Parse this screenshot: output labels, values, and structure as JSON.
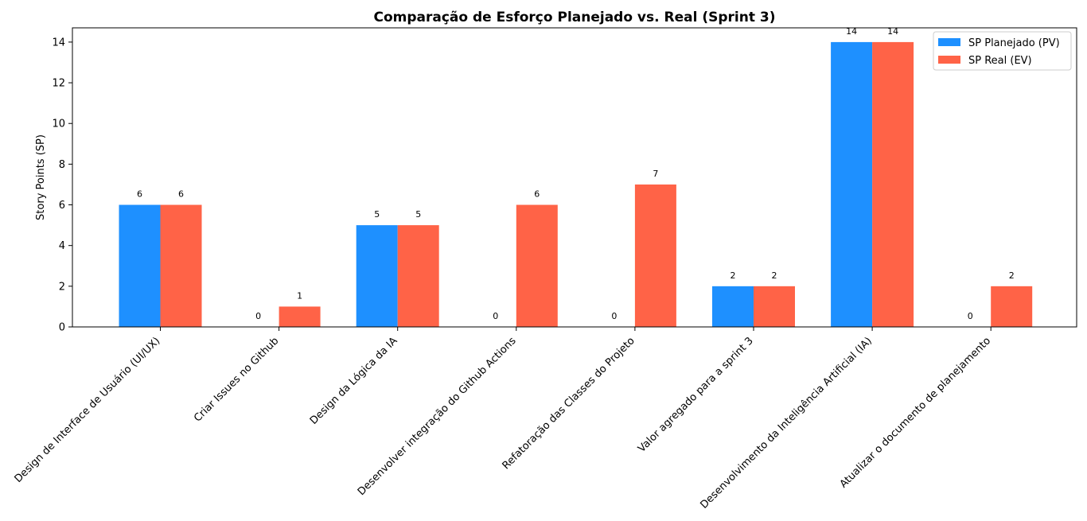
{
  "chart_data": {
    "type": "bar",
    "title": "Comparação de Esforço Planejado vs. Real (Sprint 3)",
    "xlabel": "",
    "ylabel": "Story Points (SP)",
    "ylim": [
      0,
      14.7
    ],
    "yticks": [
      0,
      2,
      4,
      6,
      8,
      10,
      12,
      14
    ],
    "grid": false,
    "legend_position": "top-right",
    "categories": [
      "Design de Interface de Usuário (UI/UX)",
      "Criar Issues no Github",
      "Design da Lógica da IA",
      "Desenvolver integração do Github Actions",
      "Refatoração das Classes do Projeto",
      "Valor agregado para a sprint 3",
      "Desenvolvimento da Inteligência Artificial (IA)",
      "Atualizar o documento de planejamento"
    ],
    "series": [
      {
        "name": "SP Planejado (PV)",
        "color": "#1e90ff",
        "values": [
          6,
          0,
          5,
          0,
          0,
          2,
          14,
          0
        ]
      },
      {
        "name": "SP Real (EV)",
        "color": "#ff6347",
        "values": [
          6,
          1,
          5,
          6,
          7,
          2,
          14,
          2
        ]
      }
    ]
  }
}
